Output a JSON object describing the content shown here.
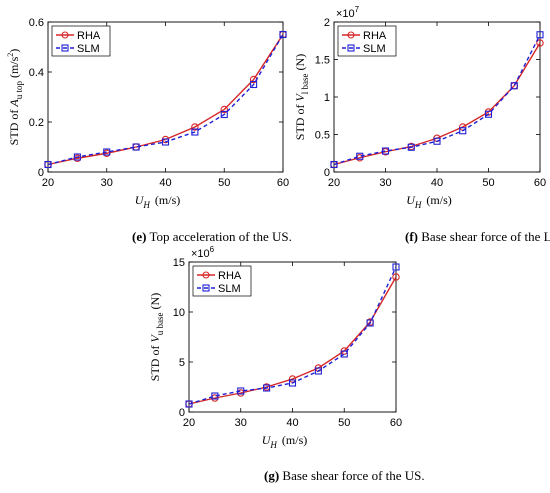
{
  "colors": {
    "rha": "#d62728",
    "slm": "#1f1fd6",
    "axis": "#000000",
    "grid": "#dddddd"
  },
  "chart_data": [
    {
      "type": "line",
      "id": "e",
      "caption_label": "(e)",
      "caption_text": " Top acceleration of the US.",
      "ylabel": "STD of A u top (m/s²)",
      "ylabel_parts": {
        "pre": "STD of ",
        "sym": "A",
        "sub": "u top",
        "unit": " (m/s",
        "sup": "2",
        "close": ")"
      },
      "xlabel_sym": "U",
      "xlabel_sub": "H",
      "xlabel_unit": "(m/s)",
      "xlim": [
        20,
        60
      ],
      "ylim": [
        0,
        0.6
      ],
      "xticks": [
        20,
        30,
        40,
        50,
        60
      ],
      "yticks": [
        0,
        0.2,
        0.4,
        0.6
      ],
      "ytick_labels": [
        "0",
        "0.2",
        "0.4",
        "0.6"
      ],
      "exponent": "",
      "legend_position": "top-left",
      "x": [
        20,
        25,
        30,
        35,
        40,
        45,
        50,
        55,
        60
      ],
      "series": [
        {
          "name": "RHA",
          "values": [
            0.03,
            0.055,
            0.075,
            0.1,
            0.13,
            0.18,
            0.25,
            0.37,
            0.55
          ]
        },
        {
          "name": "SLM",
          "values": [
            0.03,
            0.06,
            0.08,
            0.1,
            0.12,
            0.16,
            0.23,
            0.35,
            0.55
          ]
        }
      ]
    },
    {
      "type": "line",
      "id": "f",
      "caption_label": "(f)",
      "caption_text": " Base shear force of the LS.",
      "ylabel": "STD of V l base (N)",
      "ylabel_parts": {
        "pre": "STD of ",
        "sym": "V",
        "sub": "l base",
        "unit": " (N)",
        "sup": "",
        "close": ""
      },
      "xlabel_sym": "U",
      "xlabel_sub": "H",
      "xlabel_unit": "(m/s)",
      "xlim": [
        20,
        60
      ],
      "ylim": [
        0,
        2
      ],
      "xticks": [
        20,
        30,
        40,
        50,
        60
      ],
      "yticks": [
        0,
        0.5,
        1,
        1.5,
        2
      ],
      "ytick_labels": [
        "0",
        "0.5",
        "1",
        "1.5",
        "2"
      ],
      "exponent": "×10",
      "exponent_power": "7",
      "legend_position": "top-left",
      "x": [
        20,
        25,
        30,
        35,
        40,
        45,
        50,
        55,
        60
      ],
      "series": [
        {
          "name": "RHA",
          "values": [
            0.1,
            0.19,
            0.27,
            0.34,
            0.45,
            0.6,
            0.8,
            1.15,
            1.72
          ]
        },
        {
          "name": "SLM",
          "values": [
            0.1,
            0.21,
            0.28,
            0.33,
            0.41,
            0.55,
            0.77,
            1.15,
            1.83
          ]
        }
      ]
    },
    {
      "type": "line",
      "id": "g",
      "caption_label": "(g)",
      "caption_text": " Base shear force of the US.",
      "ylabel": "STD of V u base (N)",
      "ylabel_parts": {
        "pre": "STD of ",
        "sym": "V",
        "sub": "u base",
        "unit": " (N)",
        "sup": "",
        "close": ""
      },
      "xlabel_sym": "U",
      "xlabel_sub": "H",
      "xlabel_unit": "(m/s)",
      "xlim": [
        20,
        60
      ],
      "ylim": [
        0,
        15
      ],
      "xticks": [
        20,
        30,
        40,
        50,
        60
      ],
      "yticks": [
        0,
        5,
        10,
        15
      ],
      "ytick_labels": [
        "0",
        "5",
        "10",
        "15"
      ],
      "exponent": "×10",
      "exponent_power": "6",
      "legend_position": "top-left",
      "x": [
        20,
        25,
        30,
        35,
        40,
        45,
        50,
        55,
        60
      ],
      "series": [
        {
          "name": "RHA",
          "values": [
            0.8,
            1.4,
            1.9,
            2.5,
            3.3,
            4.4,
            6.1,
            9.0,
            13.5
          ]
        },
        {
          "name": "SLM",
          "values": [
            0.8,
            1.6,
            2.1,
            2.4,
            2.9,
            4.1,
            5.8,
            8.9,
            14.5
          ]
        }
      ]
    }
  ]
}
